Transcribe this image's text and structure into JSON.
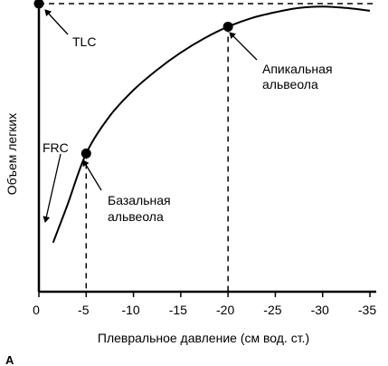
{
  "chart_data": {
    "type": "line",
    "xlabel": "Плевральное давление  (см вод. ст.)",
    "ylabel": "Объем легких",
    "panel_label": "A",
    "xlim": [
      0,
      -35
    ],
    "ylim": [
      0,
      1
    ],
    "x_ticks": [
      {
        "value": 0,
        "label": "0"
      },
      {
        "value": -5,
        "label": "-5"
      },
      {
        "value": -10,
        "label": "-10"
      },
      {
        "value": -15,
        "label": "-15"
      },
      {
        "value": -20,
        "label": "-20"
      },
      {
        "value": -25,
        "label": "-25"
      },
      {
        "value": -30,
        "label": "-30"
      },
      {
        "value": -35,
        "label": "-35"
      }
    ],
    "series": [
      {
        "x": [
          -1.5,
          -3,
          -5,
          -7.5,
          -10,
          -12.5,
          -15,
          -17.5,
          -20,
          -22.5,
          -25,
          -27.5,
          -30,
          -32.5,
          -35
        ],
        "y": [
          0.17,
          0.3,
          0.48,
          0.61,
          0.7,
          0.77,
          0.83,
          0.88,
          0.92,
          0.95,
          0.97,
          0.985,
          0.99,
          0.985,
          0.975
        ]
      }
    ],
    "points": [
      {
        "name": "TLC",
        "x": 0,
        "y": 1.0
      },
      {
        "name": "basal",
        "x": -5,
        "y": 0.48
      },
      {
        "name": "apical",
        "x": -20,
        "y": 0.92
      }
    ],
    "annotations": {
      "tlc": "TLC",
      "frc": "FRC",
      "apical_line1": "Апикальная",
      "apical_line2": "альвеола",
      "basal_line1": "Базальная",
      "basal_line2": "альвеола"
    },
    "colors": {
      "ink": "#000000",
      "background": "#ffffff"
    }
  }
}
